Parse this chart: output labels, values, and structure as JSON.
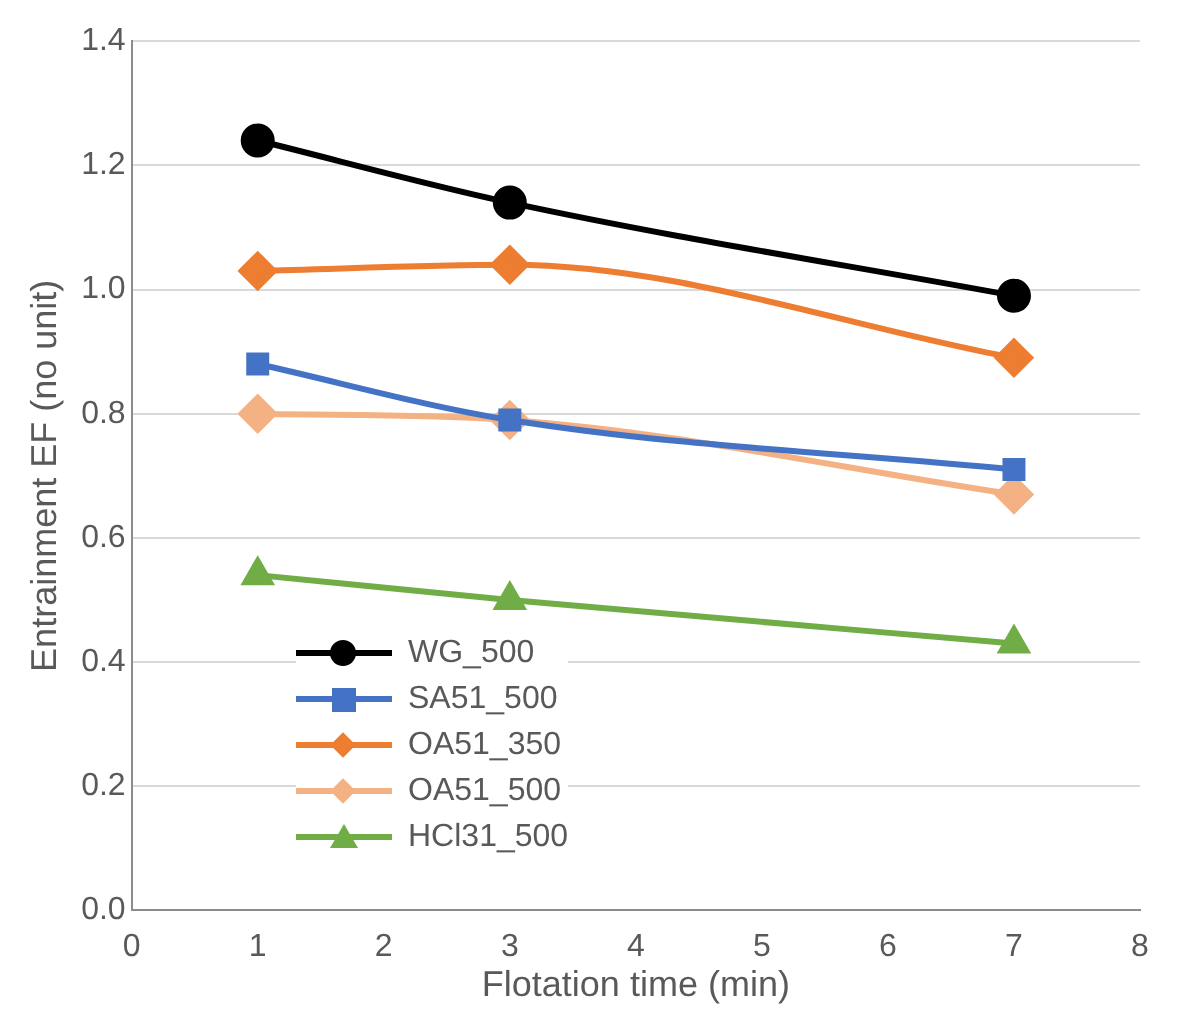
{
  "chart_data": {
    "type": "line",
    "xlabel": "Flotation time (min)",
    "ylabel": "Entrainment EF (no unit)",
    "x": [
      1,
      3,
      7
    ],
    "xlim": [
      0,
      8
    ],
    "xticks": [
      0,
      1,
      2,
      3,
      4,
      5,
      6,
      7,
      8
    ],
    "ylim": [
      0,
      1.4
    ],
    "yticks": [
      {
        "value": 0,
        "label": "0.0"
      },
      {
        "value": 0.2,
        "label": "0.2"
      },
      {
        "value": 0.4,
        "label": "0.4"
      },
      {
        "value": 0.6,
        "label": "0.6"
      },
      {
        "value": 0.8,
        "label": "0.8"
      },
      {
        "value": 1,
        "label": "1.0"
      },
      {
        "value": 1.2,
        "label": "1.2"
      },
      {
        "value": 1.4,
        "label": "1.4"
      }
    ],
    "grid": "y",
    "legend": "bottom left",
    "series": [
      {
        "name": "WG_500",
        "color": "#000000",
        "marker": "circle",
        "values": [
          1.24,
          1.14,
          0.99
        ]
      },
      {
        "name": "SA51_500",
        "color": "#4472c4",
        "marker": "square",
        "values": [
          0.88,
          0.79,
          0.71
        ]
      },
      {
        "name": "OA51_350",
        "color": "#ed7d31",
        "marker": "diamond",
        "values": [
          1.03,
          1.04,
          0.89
        ]
      },
      {
        "name": "OA51_500",
        "color": "#f4b183",
        "marker": "diamond",
        "values": [
          0.8,
          0.79,
          0.67
        ]
      },
      {
        "name": "HCl31_500",
        "color": "#70ad47",
        "marker": "triangle",
        "values": [
          0.54,
          0.5,
          0.43
        ]
      }
    ]
  }
}
